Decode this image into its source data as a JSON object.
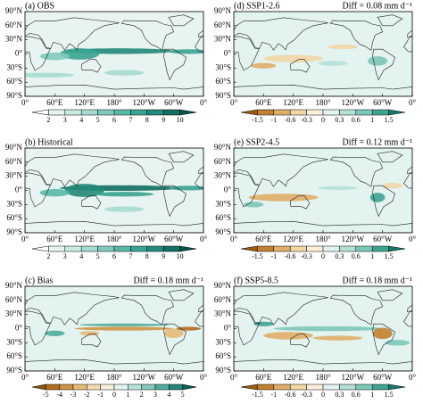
{
  "latitude_ticks": [
    "90°N",
    "60°N",
    "30°N",
    "0°",
    "30°S",
    "60°S",
    "90°S"
  ],
  "longitude_ticks": [
    "0°",
    "60°E",
    "120°E",
    "180°",
    "120°W",
    "60°W",
    "0°"
  ],
  "panels": [
    {
      "title": "(a) OBS",
      "colorbar": {
        "labels": [
          "2",
          "3",
          "4",
          "5",
          "6",
          "7",
          "8",
          "9",
          "10"
        ],
        "colors": [
          "#ffffff",
          "#e6f4f1",
          "#c9e9e2",
          "#a6dbd0",
          "#80cbbd",
          "#5ab8a8",
          "#3aa391",
          "#238a79",
          "#126f61",
          "#05544a"
        ]
      }
    },
    {
      "title": "(b) Historical",
      "colorbar": {
        "labels": [
          "2",
          "3",
          "4",
          "5",
          "6",
          "7",
          "8",
          "9",
          "10"
        ],
        "colors": [
          "#ffffff",
          "#e6f4f1",
          "#c9e9e2",
          "#a6dbd0",
          "#80cbbd",
          "#5ab8a8",
          "#3aa391",
          "#238a79",
          "#126f61",
          "#05544a"
        ]
      }
    },
    {
      "title": "(c) Bias",
      "diff": "Diff = 0.18 mm d⁻¹",
      "colorbar": {
        "labels": [
          "-5",
          "-4",
          "-3",
          "-2",
          "-1",
          "0",
          "1",
          "2",
          "3",
          "4",
          "5"
        ],
        "colors": [
          "#8c510a",
          "#b26d1f",
          "#cf9345",
          "#e4bb7a",
          "#f2dcb0",
          "#fbf1dc",
          "#e3f3ef",
          "#b7e2d8",
          "#82cbbc",
          "#4eac9b",
          "#23877a",
          "#0b6358"
        ]
      }
    },
    {
      "title": "(d) SSP1-2.6",
      "diff": "Diff = 0.08 mm d⁻¹",
      "colorbar": {
        "labels": [
          "-1.5",
          "-1",
          "-0.6",
          "-0.3",
          "0",
          "0.3",
          "0.6",
          "1",
          "1.5"
        ],
        "colors": [
          "#9a5c12",
          "#c2812f",
          "#dfae68",
          "#f1d6a6",
          "#fbf1dc",
          "#e3f3ef",
          "#b4e0d6",
          "#7cc7b8",
          "#3fa391",
          "#137a6b"
        ]
      }
    },
    {
      "title": "(e) SSP2-4.5",
      "diff": "Diff = 0.12 mm d⁻¹",
      "colorbar": {
        "labels": [
          "-1.5",
          "-1",
          "-0.6",
          "-0.3",
          "0",
          "0.3",
          "0.6",
          "1",
          "1.5"
        ],
        "colors": [
          "#9a5c12",
          "#c2812f",
          "#dfae68",
          "#f1d6a6",
          "#fbf1dc",
          "#e3f3ef",
          "#b4e0d6",
          "#7cc7b8",
          "#3fa391",
          "#137a6b"
        ]
      }
    },
    {
      "title": "(f) SSP5-8.5",
      "diff": "Diff = 0.18 mm d⁻¹",
      "colorbar": {
        "labels": [
          "-1.5",
          "-1",
          "-0.6",
          "-0.3",
          "0",
          "0.3",
          "0.6",
          "1",
          "1.5"
        ],
        "colors": [
          "#9a5c12",
          "#c2812f",
          "#dfae68",
          "#f1d6a6",
          "#fbf1dc",
          "#e3f3ef",
          "#b4e0d6",
          "#7cc7b8",
          "#3fa391",
          "#137a6b"
        ]
      }
    }
  ]
}
